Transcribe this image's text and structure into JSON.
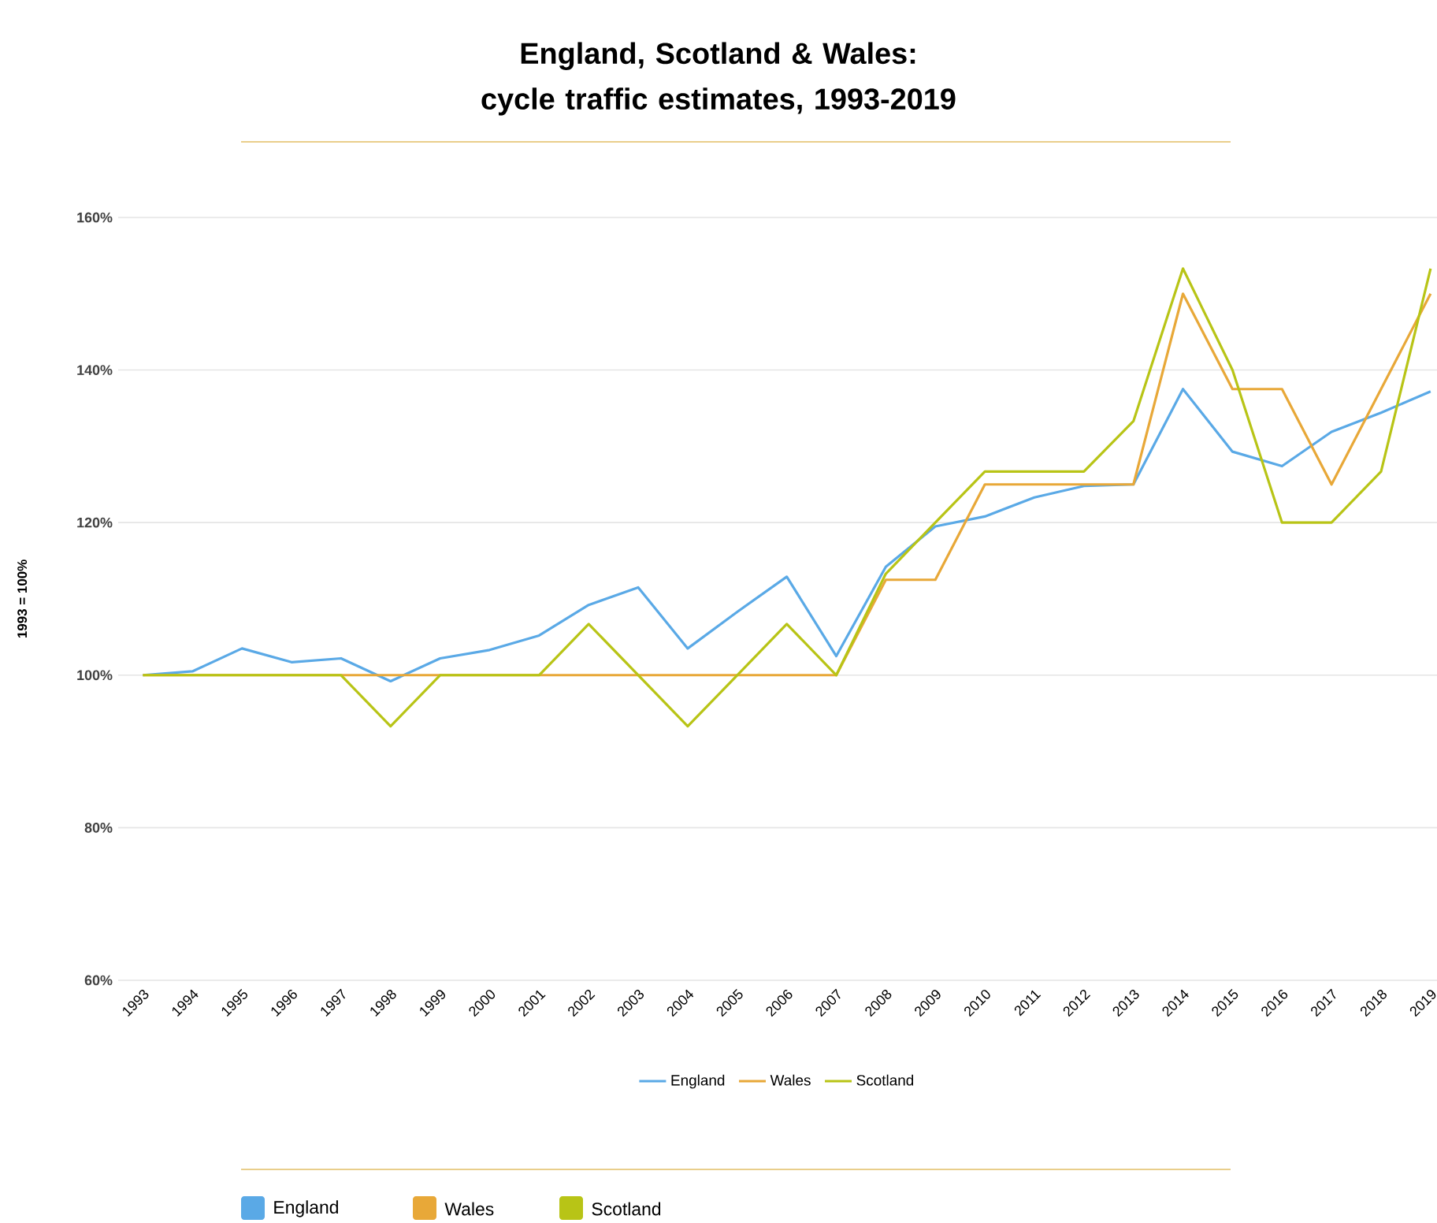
{
  "chart_data": {
    "type": "line",
    "title": "England, Scotland & Wales: cycle traffic estimates, 1993-2019",
    "ylabel": "1993 = 100%",
    "categories": [
      "1993",
      "1994",
      "1995",
      "1996",
      "1997",
      "1998",
      "1999",
      "2000",
      "2001",
      "2002",
      "2003",
      "2004",
      "2005",
      "2006",
      "2007",
      "2008",
      "2009",
      "2010",
      "2011",
      "2012",
      "2013",
      "2014",
      "2015",
      "2016",
      "2017",
      "2018",
      "2019"
    ],
    "series": [
      {
        "name": "England",
        "color": "#5aa9e6",
        "values": [
          100,
          100.5,
          103.5,
          101.7,
          102.2,
          99.2,
          102.2,
          103.3,
          105.2,
          109.2,
          111.5,
          103.5,
          108.3,
          112.9,
          102.5,
          114.2,
          119.5,
          120.8,
          123.3,
          124.8,
          125,
          137.5,
          129.3,
          127.4,
          131.9,
          134.4,
          137.2
        ]
      },
      {
        "name": "Wales",
        "color": "#e8a838",
        "values": [
          100,
          100,
          100,
          100,
          100,
          100,
          100,
          100,
          100,
          100,
          100,
          100,
          100,
          100,
          100,
          112.5,
          112.5,
          125,
          125,
          125,
          125,
          150,
          137.5,
          137.5,
          125,
          137.5,
          150
        ]
      },
      {
        "name": "Scotland",
        "color": "#b8c416",
        "values": [
          100,
          100,
          100,
          100,
          100,
          93.3,
          100,
          100,
          100,
          106.7,
          100,
          93.3,
          100,
          106.7,
          100,
          113.3,
          120,
          126.7,
          126.7,
          126.7,
          133.3,
          153.3,
          140,
          120,
          120,
          126.7,
          153.3
        ]
      }
    ],
    "ylim": [
      60,
      160
    ],
    "yticks": [
      {
        "value": 60,
        "label": "60%"
      },
      {
        "value": 80,
        "label": "80%"
      },
      {
        "value": 100,
        "label": "100%"
      },
      {
        "value": 120,
        "label": "120%"
      },
      {
        "value": 140,
        "label": "140%"
      },
      {
        "value": 160,
        "label": "160%"
      }
    ],
    "grid": "y",
    "legend": "bottom",
    "marker": "none",
    "line_style": "solid"
  }
}
